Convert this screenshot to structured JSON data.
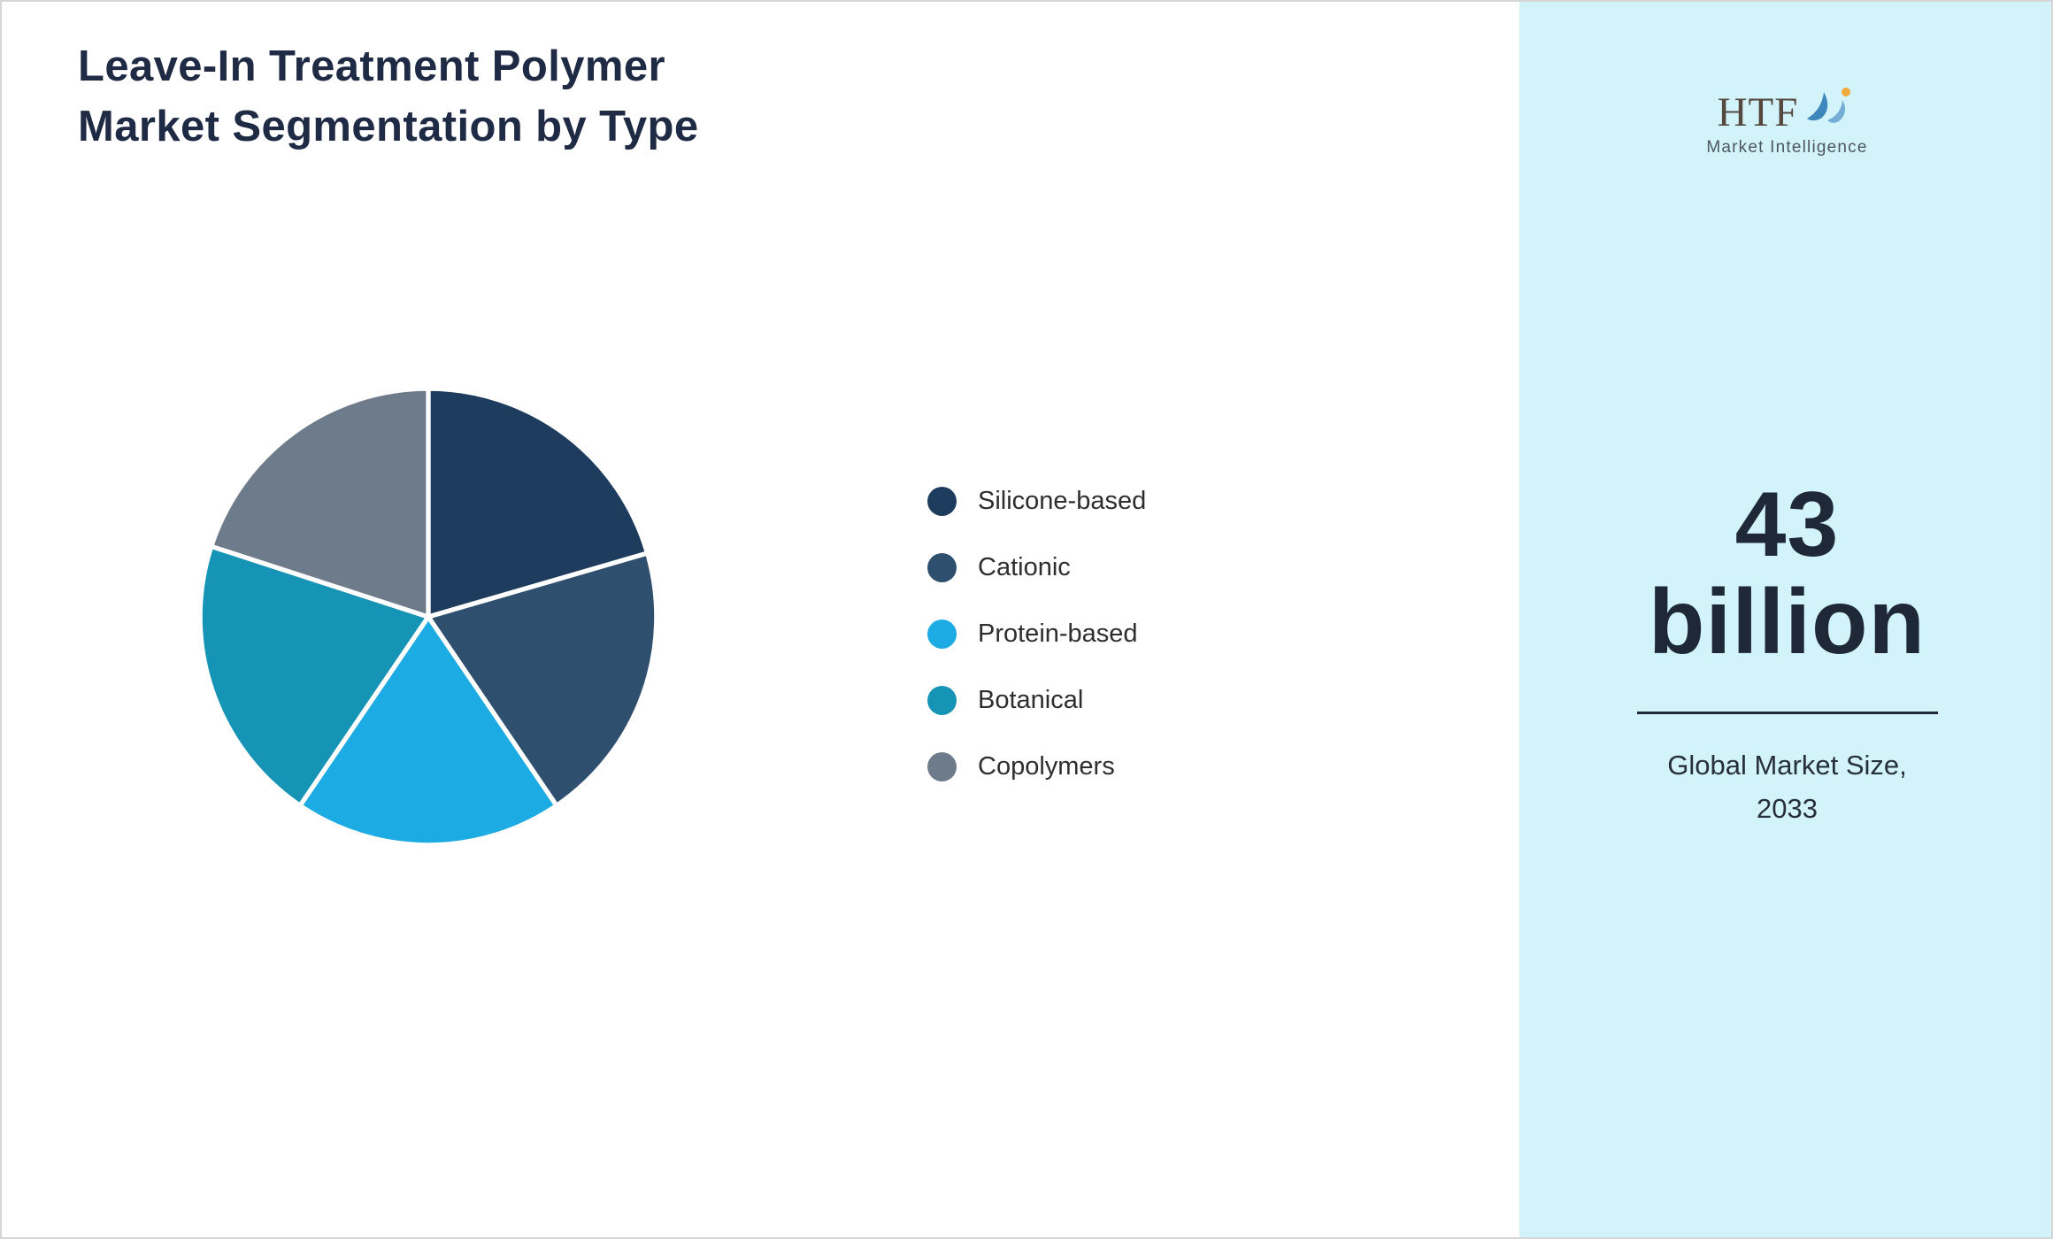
{
  "page": {
    "title_lines": [
      "Leave-In Treatment Polymer",
      "Market Segmentation by Type"
    ]
  },
  "chart_data": {
    "type": "pie",
    "title": "Leave-In Treatment Polymer Market Segmentation by Type",
    "labels": [
      "Silicone-based",
      "Cationic",
      "Protein-based",
      "Botanical",
      "Copolymers"
    ],
    "values": [
      20.5,
      20,
      19,
      20.5,
      20
    ],
    "colors": [
      "#1d3c5e",
      "#2f4f6f",
      "#1cabe2",
      "#1694b5",
      "#6e7b8a"
    ],
    "start_angle_deg": 0,
    "direction": "clockwise",
    "legend_position": "right",
    "slice_border_color": "#ffffff"
  },
  "sidebar": {
    "background": "#d2f3fa",
    "logo": {
      "text": "HTF",
      "subtext": "Market Intelligence"
    },
    "stat_value_line1": "43",
    "stat_value_line2": "billion",
    "stat_label_line1": "Global Market Size,",
    "stat_label_line2": "2033"
  }
}
